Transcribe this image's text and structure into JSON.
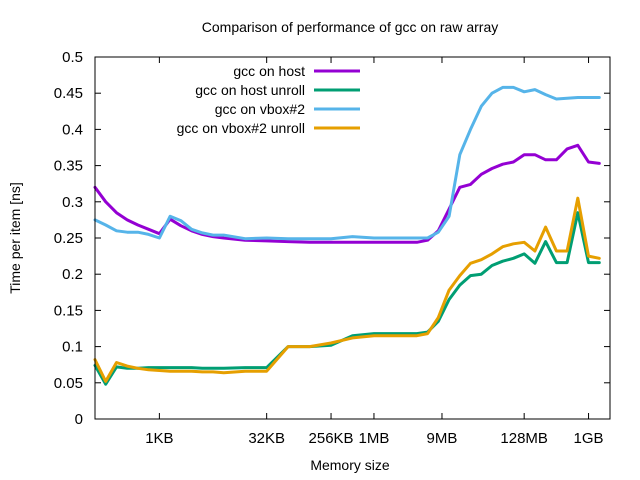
{
  "chart_data": {
    "type": "line",
    "title": "Comparison of performance of gcc on raw array",
    "xlabel": "Memory size",
    "ylabel": "Time per item [ns]",
    "x_scale": "log2",
    "x_unit": "bytes",
    "xlim": [
      128,
      2147483648
    ],
    "ylim": [
      0,
      0.5
    ],
    "y_ticks": [
      "0",
      "0.05",
      "0.1",
      "0.15",
      "0.2",
      "0.25",
      "0.3",
      "0.35",
      "0.4",
      "0.45",
      "0.5"
    ],
    "x_ticks": [
      {
        "label": "1KB",
        "value": 1024
      },
      {
        "label": "32KB",
        "value": 32768
      },
      {
        "label": "256KB",
        "value": 262144
      },
      {
        "label": "1MB",
        "value": 1048576
      },
      {
        "label": "9MB",
        "value": 9437184
      },
      {
        "label": "128MB",
        "value": 134217728
      },
      {
        "label": "1GB",
        "value": 1073741824
      }
    ],
    "legend_position": "top-left",
    "grid": false,
    "series": [
      {
        "name": "gcc on host",
        "color": "#9400d3",
        "points": [
          [
            128,
            0.32
          ],
          [
            181,
            0.3
          ],
          [
            256,
            0.285
          ],
          [
            362,
            0.275
          ],
          [
            512,
            0.268
          ],
          [
            724,
            0.262
          ],
          [
            1024,
            0.256
          ],
          [
            1448,
            0.276
          ],
          [
            2048,
            0.267
          ],
          [
            2896,
            0.26
          ],
          [
            4096,
            0.255
          ],
          [
            5793,
            0.252
          ],
          [
            8192,
            0.25
          ],
          [
            16384,
            0.247
          ],
          [
            32768,
            0.246
          ],
          [
            65536,
            0.245
          ],
          [
            131072,
            0.244
          ],
          [
            262144,
            0.244
          ],
          [
            524288,
            0.244
          ],
          [
            1048576,
            0.244
          ],
          [
            2097152,
            0.244
          ],
          [
            4194304,
            0.244
          ],
          [
            5931642,
            0.247
          ],
          [
            8388608,
            0.26
          ],
          [
            11863283,
            0.29
          ],
          [
            16777216,
            0.32
          ],
          [
            23726566,
            0.324
          ],
          [
            33554432,
            0.338
          ],
          [
            47453133,
            0.346
          ],
          [
            67108864,
            0.352
          ],
          [
            94906266,
            0.355
          ],
          [
            134217728,
            0.365
          ],
          [
            189812531,
            0.365
          ],
          [
            268435456,
            0.358
          ],
          [
            379625062,
            0.358
          ],
          [
            536870912,
            0.373
          ],
          [
            759250125,
            0.378
          ],
          [
            1073741824,
            0.355
          ],
          [
            1518500250,
            0.353
          ]
        ]
      },
      {
        "name": "gcc on host unroll",
        "color": "#009e73",
        "points": [
          [
            128,
            0.074
          ],
          [
            181,
            0.048
          ],
          [
            256,
            0.072
          ],
          [
            362,
            0.07
          ],
          [
            512,
            0.07
          ],
          [
            724,
            0.071
          ],
          [
            1024,
            0.071
          ],
          [
            1448,
            0.071
          ],
          [
            2048,
            0.071
          ],
          [
            2896,
            0.071
          ],
          [
            4096,
            0.07
          ],
          [
            5793,
            0.07
          ],
          [
            8192,
            0.07
          ],
          [
            16384,
            0.071
          ],
          [
            32768,
            0.071
          ],
          [
            65536,
            0.1
          ],
          [
            131072,
            0.1
          ],
          [
            262144,
            0.102
          ],
          [
            524288,
            0.115
          ],
          [
            1048576,
            0.118
          ],
          [
            2097152,
            0.118
          ],
          [
            4194304,
            0.118
          ],
          [
            5931642,
            0.12
          ],
          [
            8388608,
            0.135
          ],
          [
            11863283,
            0.165
          ],
          [
            16777216,
            0.185
          ],
          [
            23726566,
            0.198
          ],
          [
            33554432,
            0.2
          ],
          [
            47453133,
            0.212
          ],
          [
            67108864,
            0.218
          ],
          [
            94906266,
            0.222
          ],
          [
            134217728,
            0.228
          ],
          [
            189812531,
            0.215
          ],
          [
            268435456,
            0.245
          ],
          [
            379625062,
            0.216
          ],
          [
            536870912,
            0.216
          ],
          [
            759250125,
            0.285
          ],
          [
            1073741824,
            0.216
          ],
          [
            1518500250,
            0.216
          ]
        ]
      },
      {
        "name": "gcc on vbox#2",
        "color": "#56b4e9",
        "points": [
          [
            128,
            0.275
          ],
          [
            181,
            0.268
          ],
          [
            256,
            0.26
          ],
          [
            362,
            0.258
          ],
          [
            512,
            0.258
          ],
          [
            724,
            0.255
          ],
          [
            1024,
            0.25
          ],
          [
            1448,
            0.28
          ],
          [
            2048,
            0.274
          ],
          [
            2896,
            0.262
          ],
          [
            4096,
            0.257
          ],
          [
            5793,
            0.254
          ],
          [
            8192,
            0.254
          ],
          [
            16384,
            0.249
          ],
          [
            32768,
            0.25
          ],
          [
            65536,
            0.249
          ],
          [
            131072,
            0.249
          ],
          [
            262144,
            0.249
          ],
          [
            524288,
            0.252
          ],
          [
            1048576,
            0.25
          ],
          [
            2097152,
            0.25
          ],
          [
            4194304,
            0.25
          ],
          [
            5931642,
            0.25
          ],
          [
            8388608,
            0.258
          ],
          [
            11863283,
            0.28
          ],
          [
            16777216,
            0.365
          ],
          [
            23726566,
            0.4
          ],
          [
            33554432,
            0.432
          ],
          [
            47453133,
            0.45
          ],
          [
            67108864,
            0.458
          ],
          [
            94906266,
            0.458
          ],
          [
            134217728,
            0.452
          ],
          [
            189812531,
            0.455
          ],
          [
            268435456,
            0.448
          ],
          [
            379625062,
            0.442
          ],
          [
            536870912,
            0.443
          ],
          [
            759250125,
            0.444
          ],
          [
            1073741824,
            0.444
          ],
          [
            1518500250,
            0.444
          ]
        ]
      },
      {
        "name": "gcc on vbox#2 unroll",
        "color": "#e69f00",
        "points": [
          [
            128,
            0.082
          ],
          [
            181,
            0.052
          ],
          [
            256,
            0.078
          ],
          [
            362,
            0.073
          ],
          [
            512,
            0.07
          ],
          [
            724,
            0.068
          ],
          [
            1024,
            0.067
          ],
          [
            1448,
            0.066
          ],
          [
            2048,
            0.066
          ],
          [
            2896,
            0.066
          ],
          [
            4096,
            0.065
          ],
          [
            5793,
            0.065
          ],
          [
            8192,
            0.064
          ],
          [
            16384,
            0.066
          ],
          [
            32768,
            0.066
          ],
          [
            65536,
            0.1
          ],
          [
            131072,
            0.1
          ],
          [
            262144,
            0.105
          ],
          [
            524288,
            0.112
          ],
          [
            1048576,
            0.115
          ],
          [
            2097152,
            0.115
          ],
          [
            4194304,
            0.115
          ],
          [
            5931642,
            0.118
          ],
          [
            8388608,
            0.14
          ],
          [
            11863283,
            0.178
          ],
          [
            16777216,
            0.198
          ],
          [
            23726566,
            0.215
          ],
          [
            33554432,
            0.22
          ],
          [
            47453133,
            0.228
          ],
          [
            67108864,
            0.238
          ],
          [
            94906266,
            0.242
          ],
          [
            134217728,
            0.244
          ],
          [
            189812531,
            0.232
          ],
          [
            268435456,
            0.265
          ],
          [
            379625062,
            0.232
          ],
          [
            536870912,
            0.232
          ],
          [
            759250125,
            0.305
          ],
          [
            1073741824,
            0.225
          ],
          [
            1518500250,
            0.222
          ]
        ]
      }
    ]
  }
}
